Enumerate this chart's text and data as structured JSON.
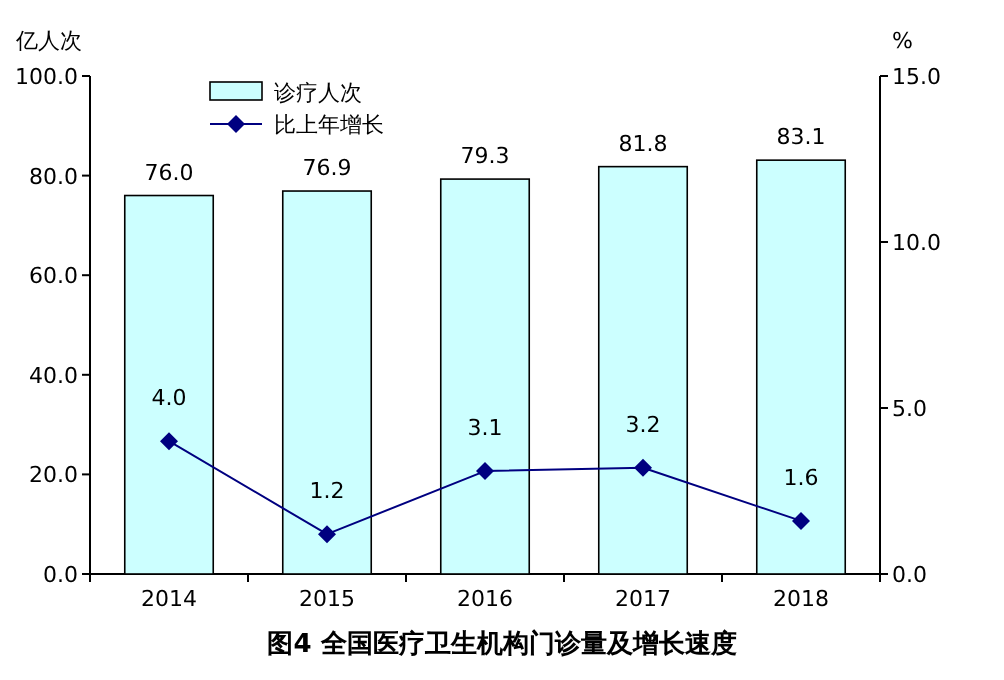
{
  "chart_data": {
    "type": "bar",
    "title": "图4  全国医疗卫生机构门诊量及增长速度",
    "ylabel": "亿人次",
    "y2label": "%",
    "categories": [
      "2014",
      "2015",
      "2016",
      "2017",
      "2018"
    ],
    "series": [
      {
        "name": "诊疗人次",
        "color": "#ccffff",
        "values": [
          76.0,
          76.9,
          79.3,
          81.8,
          83.1
        ],
        "value_labels": [
          "76.0",
          "76.9",
          "79.3",
          "81.8",
          "83.1"
        ]
      },
      {
        "name": "比上年增长",
        "type": "line",
        "axis": "y2",
        "color": "#000080",
        "marker": "diamond",
        "values": [
          4.0,
          1.2,
          3.1,
          3.2,
          1.6
        ],
        "value_labels": [
          "4.0",
          "1.2",
          "3.1",
          "3.2",
          "1.6"
        ]
      }
    ],
    "ylim": [
      0,
      100
    ],
    "yticks": [
      {
        "value": 0,
        "label": "0.0"
      },
      {
        "value": 20,
        "label": "20.0"
      },
      {
        "value": 40,
        "label": "40.0"
      },
      {
        "value": 60,
        "label": "60.0"
      },
      {
        "value": 80,
        "label": "80.0"
      },
      {
        "value": 100,
        "label": "100.0"
      }
    ],
    "y2lim": [
      0,
      15
    ],
    "y2ticks": [
      {
        "value": 0,
        "label": "0.0"
      },
      {
        "value": 5,
        "label": "5.0"
      },
      {
        "value": 10,
        "label": "10.0"
      },
      {
        "value": 15,
        "label": "15.0"
      }
    ],
    "legend": "top left"
  }
}
